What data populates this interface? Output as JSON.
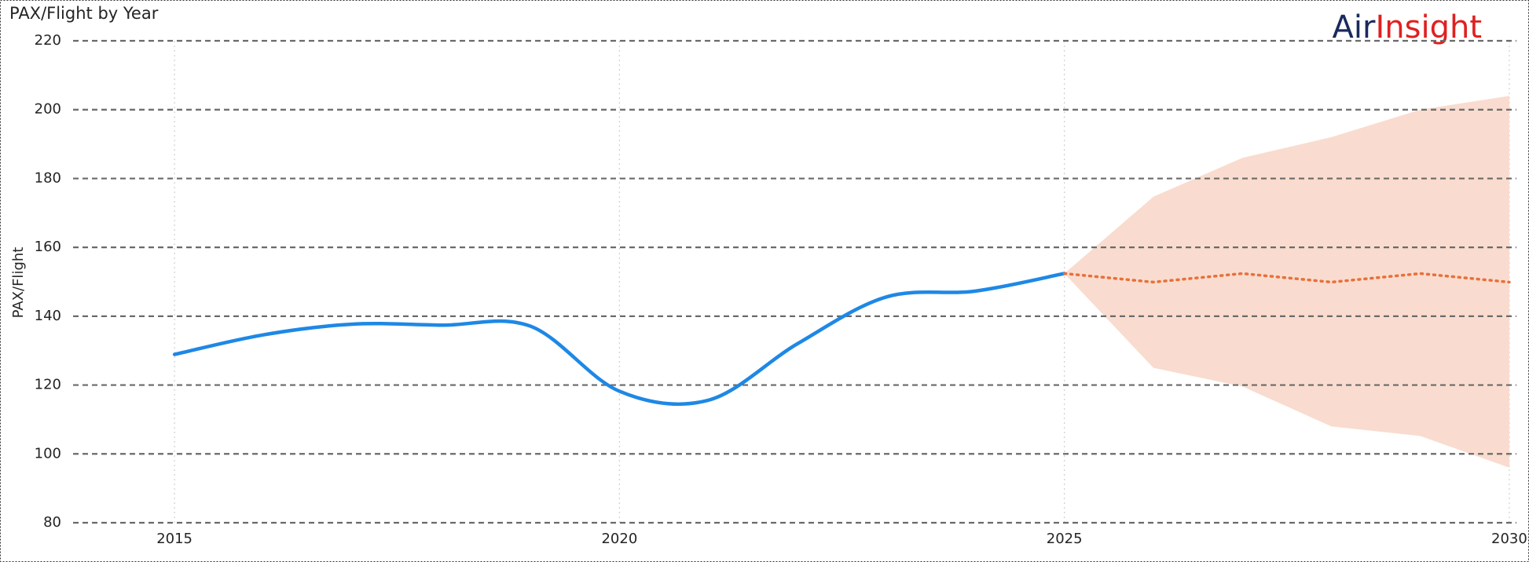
{
  "chart_data": {
    "type": "line",
    "title": "PAX/Flight by Year",
    "y_label": "PAX/Flight",
    "logo": [
      "Air",
      "Insight"
    ],
    "xlim": [
      2013.86,
      2030.08
    ],
    "xticks": [
      2015,
      2020,
      2025,
      2030
    ],
    "ylim": [
      80,
      220
    ],
    "yticks": [
      80,
      100,
      120,
      140,
      160,
      180,
      200,
      220
    ],
    "grid": true,
    "series": [
      {
        "color": "#1e88e5",
        "style": "solid",
        "x": [
          2015,
          2016,
          2017,
          2018,
          2019,
          2020,
          2021,
          2022,
          2023,
          2024,
          2025
        ],
        "values": [
          128.9,
          134.6,
          137.7,
          137.4,
          137.1,
          118.2,
          115.6,
          132,
          145.6,
          147.3,
          152.4
        ]
      },
      {
        "color": "#e8703a",
        "style": "dotted",
        "x": [
          2025,
          2026,
          2027,
          2028,
          2029,
          2030
        ],
        "values": [
          152.4,
          149.9,
          152.4,
          149.9,
          152.4,
          149.9
        ]
      }
    ],
    "band": {
      "color": "#f9dccf",
      "x": [
        2025,
        2026,
        2027,
        2028,
        2029,
        2030
      ],
      "upper": [
        152.4,
        174.7,
        186,
        192,
        200,
        204
      ],
      "lower": [
        152.4,
        125,
        119.6,
        108,
        105.2,
        96
      ]
    }
  }
}
